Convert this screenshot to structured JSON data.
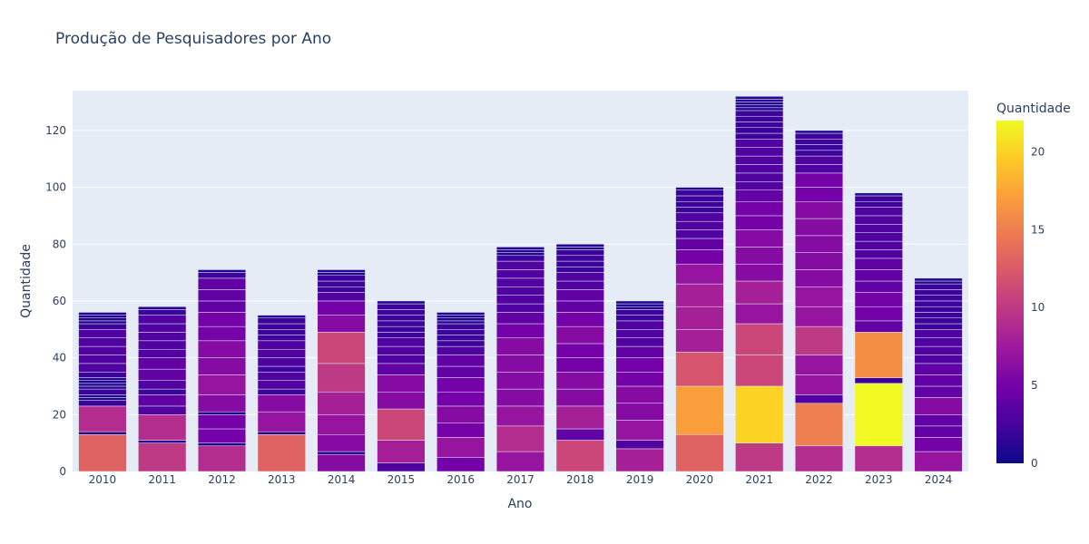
{
  "chart_data": {
    "type": "bar",
    "barmode": "stack",
    "title": "Produção de Pesquisadores por Ano",
    "xlabel": "Ano",
    "ylabel": "Quantidade",
    "ylim": [
      0,
      134
    ],
    "yticks": [
      0,
      20,
      40,
      60,
      80,
      100,
      120
    ],
    "grid": true,
    "categories": [
      "2010",
      "2011",
      "2012",
      "2013",
      "2014",
      "2015",
      "2016",
      "2017",
      "2018",
      "2019",
      "2020",
      "2021",
      "2022",
      "2023",
      "2024"
    ],
    "colorscale": {
      "title": "Quantidade",
      "range": [
        0,
        22
      ],
      "ticks": [
        0,
        5,
        10,
        15,
        20
      ],
      "colors": [
        "#0d0887",
        "#46039f",
        "#7201a8",
        "#9c179e",
        "#bd3786",
        "#d8576b",
        "#ed7953",
        "#fb9f3a",
        "#fdca26",
        "#f0f921"
      ]
    },
    "segments": [
      [
        13,
        1,
        9,
        2,
        1,
        1,
        2,
        1,
        1,
        1,
        1,
        2,
        3,
        3,
        3,
        3,
        3,
        2,
        1,
        1,
        1,
        1
      ],
      [
        10,
        1,
        9,
        3,
        4,
        2,
        3,
        4,
        4,
        3,
        3,
        3,
        3,
        3,
        2,
        1
      ],
      [
        9,
        1,
        5,
        5,
        1,
        6,
        7,
        6,
        6,
        5,
        5,
        4,
        4,
        4,
        2,
        1
      ],
      [
        13,
        1,
        7,
        6,
        2,
        3,
        3,
        2,
        3,
        3,
        3,
        2,
        2,
        2,
        2,
        1
      ],
      [
        6,
        1,
        6,
        7,
        8,
        10,
        11,
        6,
        5,
        3,
        2,
        2,
        2,
        1,
        1
      ],
      [
        3,
        8,
        11,
        6,
        6,
        4,
        3,
        3,
        3,
        2,
        2,
        2,
        2,
        2,
        2,
        1
      ],
      [
        5,
        7,
        5,
        6,
        5,
        5,
        4,
        4,
        3,
        2,
        2,
        2,
        2,
        1,
        1,
        1,
        1
      ],
      [
        7,
        9,
        7,
        6,
        6,
        6,
        6,
        5,
        4,
        3,
        3,
        3,
        3,
        3,
        3,
        2,
        1,
        1,
        1
      ],
      [
        11,
        4,
        8,
        6,
        6,
        5,
        5,
        6,
        5,
        4,
        4,
        3,
        3,
        2,
        2,
        2,
        2,
        1,
        1
      ],
      [
        8,
        3,
        7,
        6,
        6,
        5,
        5,
        4,
        3,
        3,
        3,
        2,
        2,
        1,
        1,
        1
      ],
      [
        13,
        17,
        12,
        8,
        8,
        8,
        7,
        5,
        4,
        3,
        3,
        3,
        2,
        2,
        2,
        2,
        1
      ],
      [
        10,
        20,
        11,
        11,
        7,
        8,
        6,
        6,
        6,
        5,
        5,
        4,
        3,
        3,
        3,
        3,
        3,
        3,
        2,
        2,
        2,
        2,
        2,
        1,
        1,
        1,
        1,
        1
      ],
      [
        9,
        15,
        3,
        7,
        7,
        10,
        7,
        7,
        6,
        6,
        6,
        6,
        6,
        5,
        5,
        3,
        3,
        2,
        2,
        2,
        2,
        1
      ],
      [
        9,
        22,
        2,
        16,
        4,
        5,
        5,
        4,
        4,
        4,
        3,
        3,
        3,
        3,
        3,
        3,
        2,
        2,
        1
      ],
      [
        7,
        5,
        4,
        4,
        6,
        4,
        4,
        4,
        3,
        3,
        3,
        3,
        2,
        2,
        2,
        2,
        2,
        2,
        2,
        2,
        1,
        1
      ]
    ]
  }
}
